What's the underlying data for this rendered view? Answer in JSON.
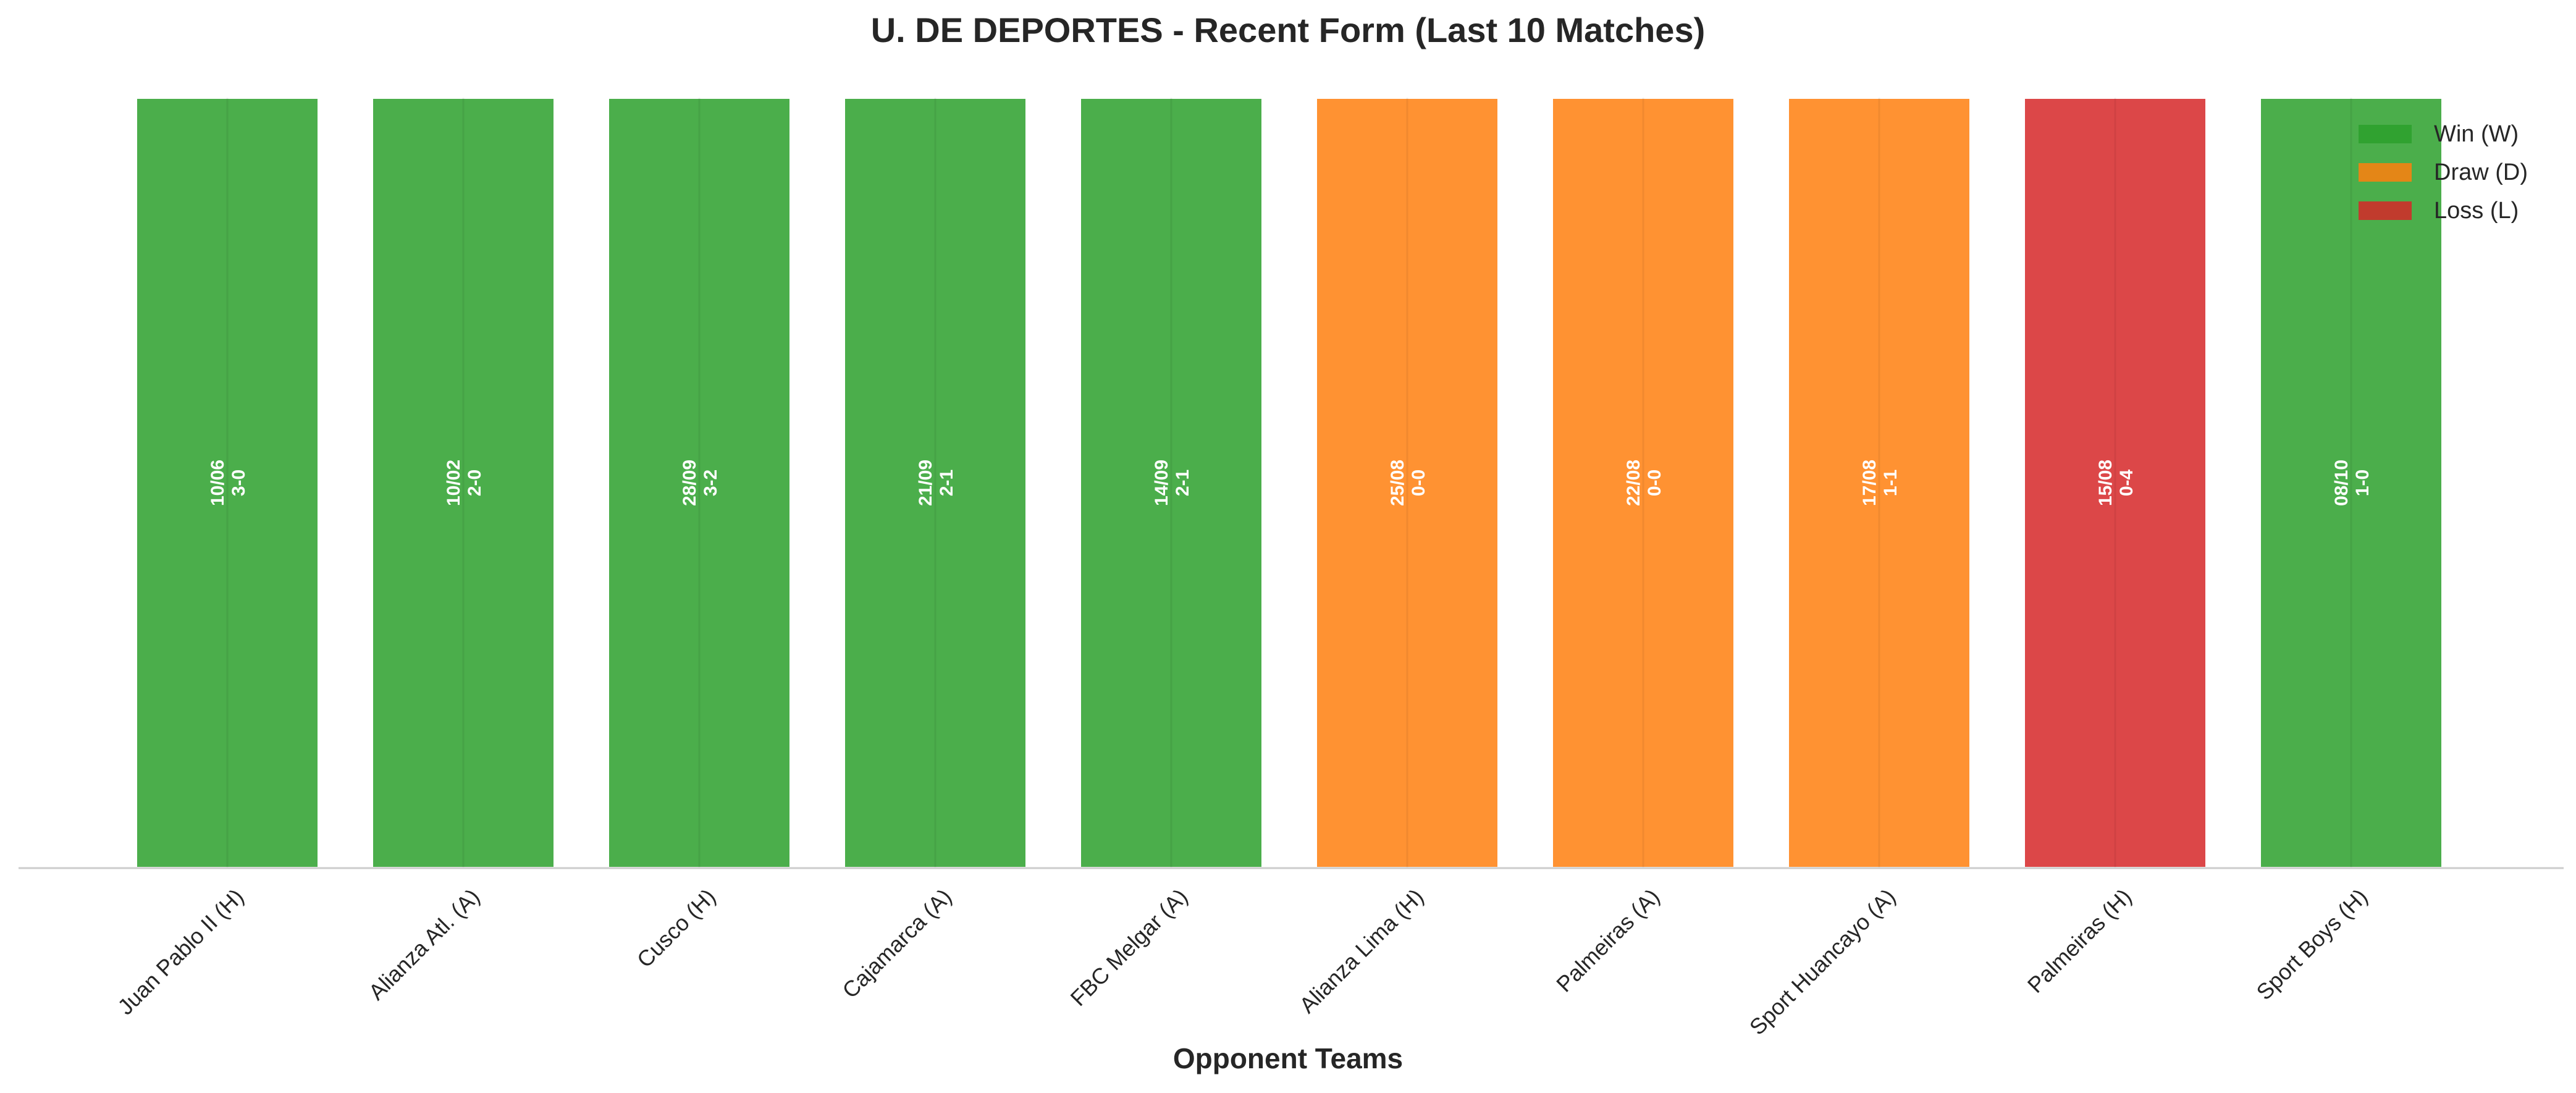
{
  "chart_data": {
    "type": "bar",
    "title": "U. DE DEPORTES - Recent Form (Last 10 Matches)",
    "xlabel": "Opponent Teams",
    "ylabel": "",
    "categories": [
      "Juan Pablo II (H)",
      "Alianza Atl. (A)",
      "Cusco (H)",
      "Cajamarca (A)",
      "FBC Melgar (A)",
      "Alianza Lima (H)",
      "Palmeiras (A)",
      "Sport Huancayo (A)",
      "Palmeiras (H)",
      "Sport Boys (H)"
    ],
    "values": [
      1,
      1,
      1,
      1,
      1,
      1,
      1,
      1,
      1,
      1
    ],
    "results": [
      "W",
      "W",
      "W",
      "W",
      "W",
      "D",
      "D",
      "D",
      "L",
      "W"
    ],
    "dates": [
      "10/06",
      "10/02",
      "28/09",
      "21/09",
      "14/09",
      "25/08",
      "22/08",
      "17/08",
      "15/08",
      "08/10"
    ],
    "scores": [
      "3-0",
      "2-0",
      "3-2",
      "2-1",
      "2-1",
      "0-0",
      "0-0",
      "1-1",
      "0-4",
      "1-0"
    ],
    "ylim": [
      0,
      1
    ],
    "grid": false,
    "legend_position": "top-right",
    "legend": [
      {
        "key": "W",
        "label": "Win (W)",
        "color": "#2ca02c"
      },
      {
        "key": "D",
        "label": "Draw (D)",
        "color": "#ff7f0e"
      },
      {
        "key": "L",
        "label": "Loss (L)",
        "color": "#d62728"
      }
    ]
  }
}
